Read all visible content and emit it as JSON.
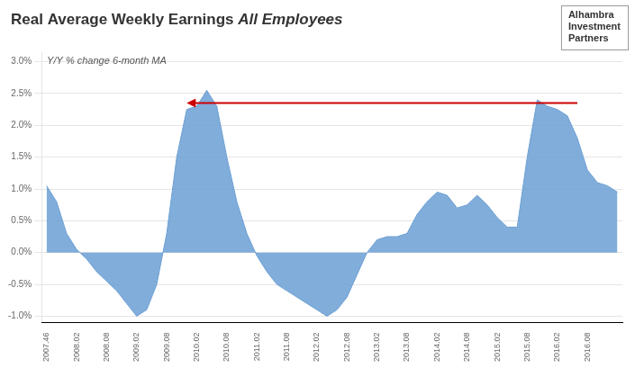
{
  "chart_data": {
    "type": "area",
    "title": "Real Average Weekly Earnings ",
    "title_italic": "All Employees",
    "subtitle": "Y/Y % change 6-month MA",
    "logo_text": [
      "Alhambra",
      "Investment",
      "Partners"
    ],
    "categories": [
      "2007.46",
      null,
      null,
      "2008.02",
      null,
      null,
      "2008.08",
      null,
      null,
      "2009.02",
      null,
      null,
      "2009.08",
      null,
      null,
      "2010.02",
      null,
      null,
      "2010.08",
      null,
      null,
      "2011.02",
      null,
      null,
      "2011.08",
      null,
      null,
      "2012.02",
      null,
      null,
      "2012.08",
      null,
      null,
      "2013.02",
      null,
      null,
      "2013.08",
      null,
      null,
      "2014.02",
      null,
      null,
      "2014.08",
      null,
      null,
      "2015.02",
      null,
      null,
      "2015.08",
      null,
      null,
      "2016.02",
      null,
      null,
      "2016.08",
      null,
      null,
      null
    ],
    "values": [
      1.05,
      0.8,
      0.3,
      0.05,
      -0.1,
      -0.3,
      -0.45,
      -0.6,
      -0.8,
      -1.0,
      -0.9,
      -0.5,
      0.3,
      1.5,
      2.25,
      2.3,
      2.55,
      2.3,
      1.5,
      0.8,
      0.3,
      -0.05,
      -0.3,
      -0.5,
      -0.6,
      -0.7,
      -0.8,
      -0.9,
      -1.0,
      -0.9,
      -0.7,
      -0.35,
      0.0,
      0.2,
      0.25,
      0.25,
      0.3,
      0.6,
      0.8,
      0.95,
      0.9,
      0.7,
      0.75,
      0.9,
      0.75,
      0.55,
      0.4,
      0.4,
      1.5,
      2.4,
      2.3,
      2.25,
      2.15,
      1.8,
      1.3,
      1.1,
      1.05,
      0.95
    ],
    "color": "#6b9fd4",
    "ylim": [
      -1.1,
      3.15
    ],
    "yticks": [
      {
        "value": -1.0,
        "label": "-1.0%"
      },
      {
        "value": -0.5,
        "label": "-0.5%"
      },
      {
        "value": 0.0,
        "label": "0.0%"
      },
      {
        "value": 0.5,
        "label": "0.5%"
      },
      {
        "value": 1.0,
        "label": "1.0%"
      },
      {
        "value": 1.5,
        "label": "1.5%"
      },
      {
        "value": 2.0,
        "label": "2.0%"
      },
      {
        "value": 2.5,
        "label": "2.5%"
      },
      {
        "value": 3.0,
        "label": "3.0%"
      }
    ],
    "grid": true,
    "annotations": [
      {
        "type": "arrow",
        "x_start": 53,
        "x_end": 14,
        "y": 2.35,
        "color": "#cc0000"
      }
    ]
  }
}
